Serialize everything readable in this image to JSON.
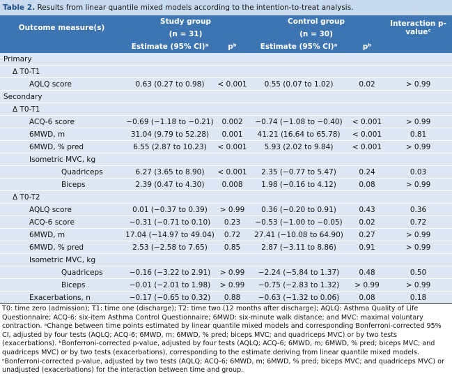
{
  "title": {
    "label": "Table 2.",
    "text": "Results from linear quantile mixed models according to the intention-to-treat analysis."
  },
  "header": {
    "outcome": "Outcome measure(s)",
    "study": "Study group",
    "study_n": "(n = 31)",
    "control": "Control group",
    "control_n": "(n = 30)",
    "interaction": "Interaction p-valueᶜ",
    "estimate_study": "Estimate (95% CI)ᵃ",
    "p_study": "pᵇ",
    "estimate_control": "Estimate (95% CI)ᵃ",
    "p_control": "pᵇ"
  },
  "sections": [
    {
      "title": "Primary",
      "groups": [
        {
          "title": "Δ T0-T1",
          "rows": [
            {
              "label": "AQLQ score",
              "cells": [
                "0.63 (0.27 to 0.98)",
                "< 0.001",
                "0.55 (0.07 to 1.02)",
                "0.02",
                "> 0.99"
              ]
            }
          ]
        }
      ]
    },
    {
      "title": "Secondary",
      "groups": [
        {
          "title": "Δ T0-T1",
          "rows": [
            {
              "label": "ACQ-6 score",
              "cells": [
                "−0.69 (−1.18 to −0.21)",
                "0.002",
                "−0.74 (−1.08 to −0.40)",
                "< 0.001",
                "> 0.99"
              ]
            },
            {
              "label": "6MWD, m",
              "cells": [
                "31.04 (9.79 to 52.28)",
                "0.001",
                "41.21 (16.64 to 65.78)",
                "< 0.001",
                "0.81"
              ]
            },
            {
              "label": "6MWD, % pred",
              "cells": [
                "6.55 (2.87 to 10.23)",
                "< 0.001",
                "5.93 (2.02 to 9.84)",
                "< 0.001",
                "> 0.99"
              ]
            },
            {
              "label": "Isometric MVC, kg",
              "rows": [
                {
                  "label": "Quadriceps",
                  "cells": [
                    "6.27 (3.65 to 8.90)",
                    "< 0.001",
                    "2.35 (−0.77 to 5.47)",
                    "0.24",
                    "0.03"
                  ]
                },
                {
                  "label": "Biceps",
                  "cells": [
                    "2.39 (0.47 to 4.30)",
                    "0.008",
                    "1.98 (−0.16 to 4.12)",
                    "0.08",
                    "> 0.99"
                  ]
                }
              ]
            }
          ]
        },
        {
          "title": "Δ T0-T2",
          "rows": [
            {
              "label": "AQLQ score",
              "cells": [
                "0.01 (−0.37 to 0.39)",
                "> 0.99",
                "0.36 (−0.20 to 0.91)",
                "0.43",
                "0.36"
              ]
            },
            {
              "label": "ACQ-6 score",
              "cells": [
                "−0.31 (−0.71 to 0.10)",
                "0.23",
                "−0.53 (−1.00 to −0.05)",
                "0.02",
                "0.72"
              ]
            },
            {
              "label": "6MWD, m",
              "cells": [
                "17.04 (−14.97 to 49.04)",
                "0.72",
                "27.41 (−10.08 to 64.90)",
                "0.27",
                "> 0.99"
              ]
            },
            {
              "label": "6MWD, % pred",
              "cells": [
                "2.53 (−2.58 to 7.65)",
                "0.85",
                "2.87 (−3.11 to 8.86)",
                "0.91",
                "> 0.99"
              ]
            },
            {
              "label": "Isometric MVC, kg",
              "rows": [
                {
                  "label": "Quadriceps",
                  "cells": [
                    "−0.16 (−3.22 to 2.91)",
                    "> 0.99",
                    "−2.24 (−5.84 to 1.37)",
                    "0.48",
                    "0.50"
                  ]
                },
                {
                  "label": "Biceps",
                  "cells": [
                    "−0.01 (−2.01 to 1.98)",
                    "> 0.99",
                    "−0.75 (−2.83 to 1.32)",
                    "> 0.99",
                    "> 0.99"
                  ]
                }
              ]
            },
            {
              "label": "Exacerbations, n",
              "cells": [
                "−0.17 (−0.65 to 0.32)",
                "0.88",
                "−0.63 (−1.32 to 0.06)",
                "0.08",
                "0.18"
              ]
            }
          ]
        }
      ]
    }
  ],
  "footnote": "T0: time zero (admission); T1: time one (discharge); T2: time two (12 months after discharge); AQLQ: Asthma Quality of Life Questionnaire; ACQ-6: six-item Asthma Control Questionnaire; 6MWD: six-minute walk distance; and MVC: maximal voluntary contraction. ᵃChange between time points estimated by linear quantile mixed models and corresponding Bonferroni-corrected 95% CI, adjusted by four tests (AQLQ; ACQ-6; 6MWD, m; 6MWD, % pred; biceps MVC; and quadriceps MVC) or by two tests (exacerbations). ᵇBonferroni-corrected p-value, adjusted by four tests (AQLQ; ACQ-6; 6MWD, m; 6MWD, % pred; biceps MVC; and quadriceps MVC) or by two tests (exacerbations), corresponding to the estimate deriving from linear quantile mixed models. ᶜBonferroni-corrected p-value, adjusted by two tests (AQLQ; ACQ-6; 6MWD, m; 6MWD, % pred; biceps MVC; and quadriceps MVC) or unadjusted (exacerbations) for the interaction between time and group."
}
